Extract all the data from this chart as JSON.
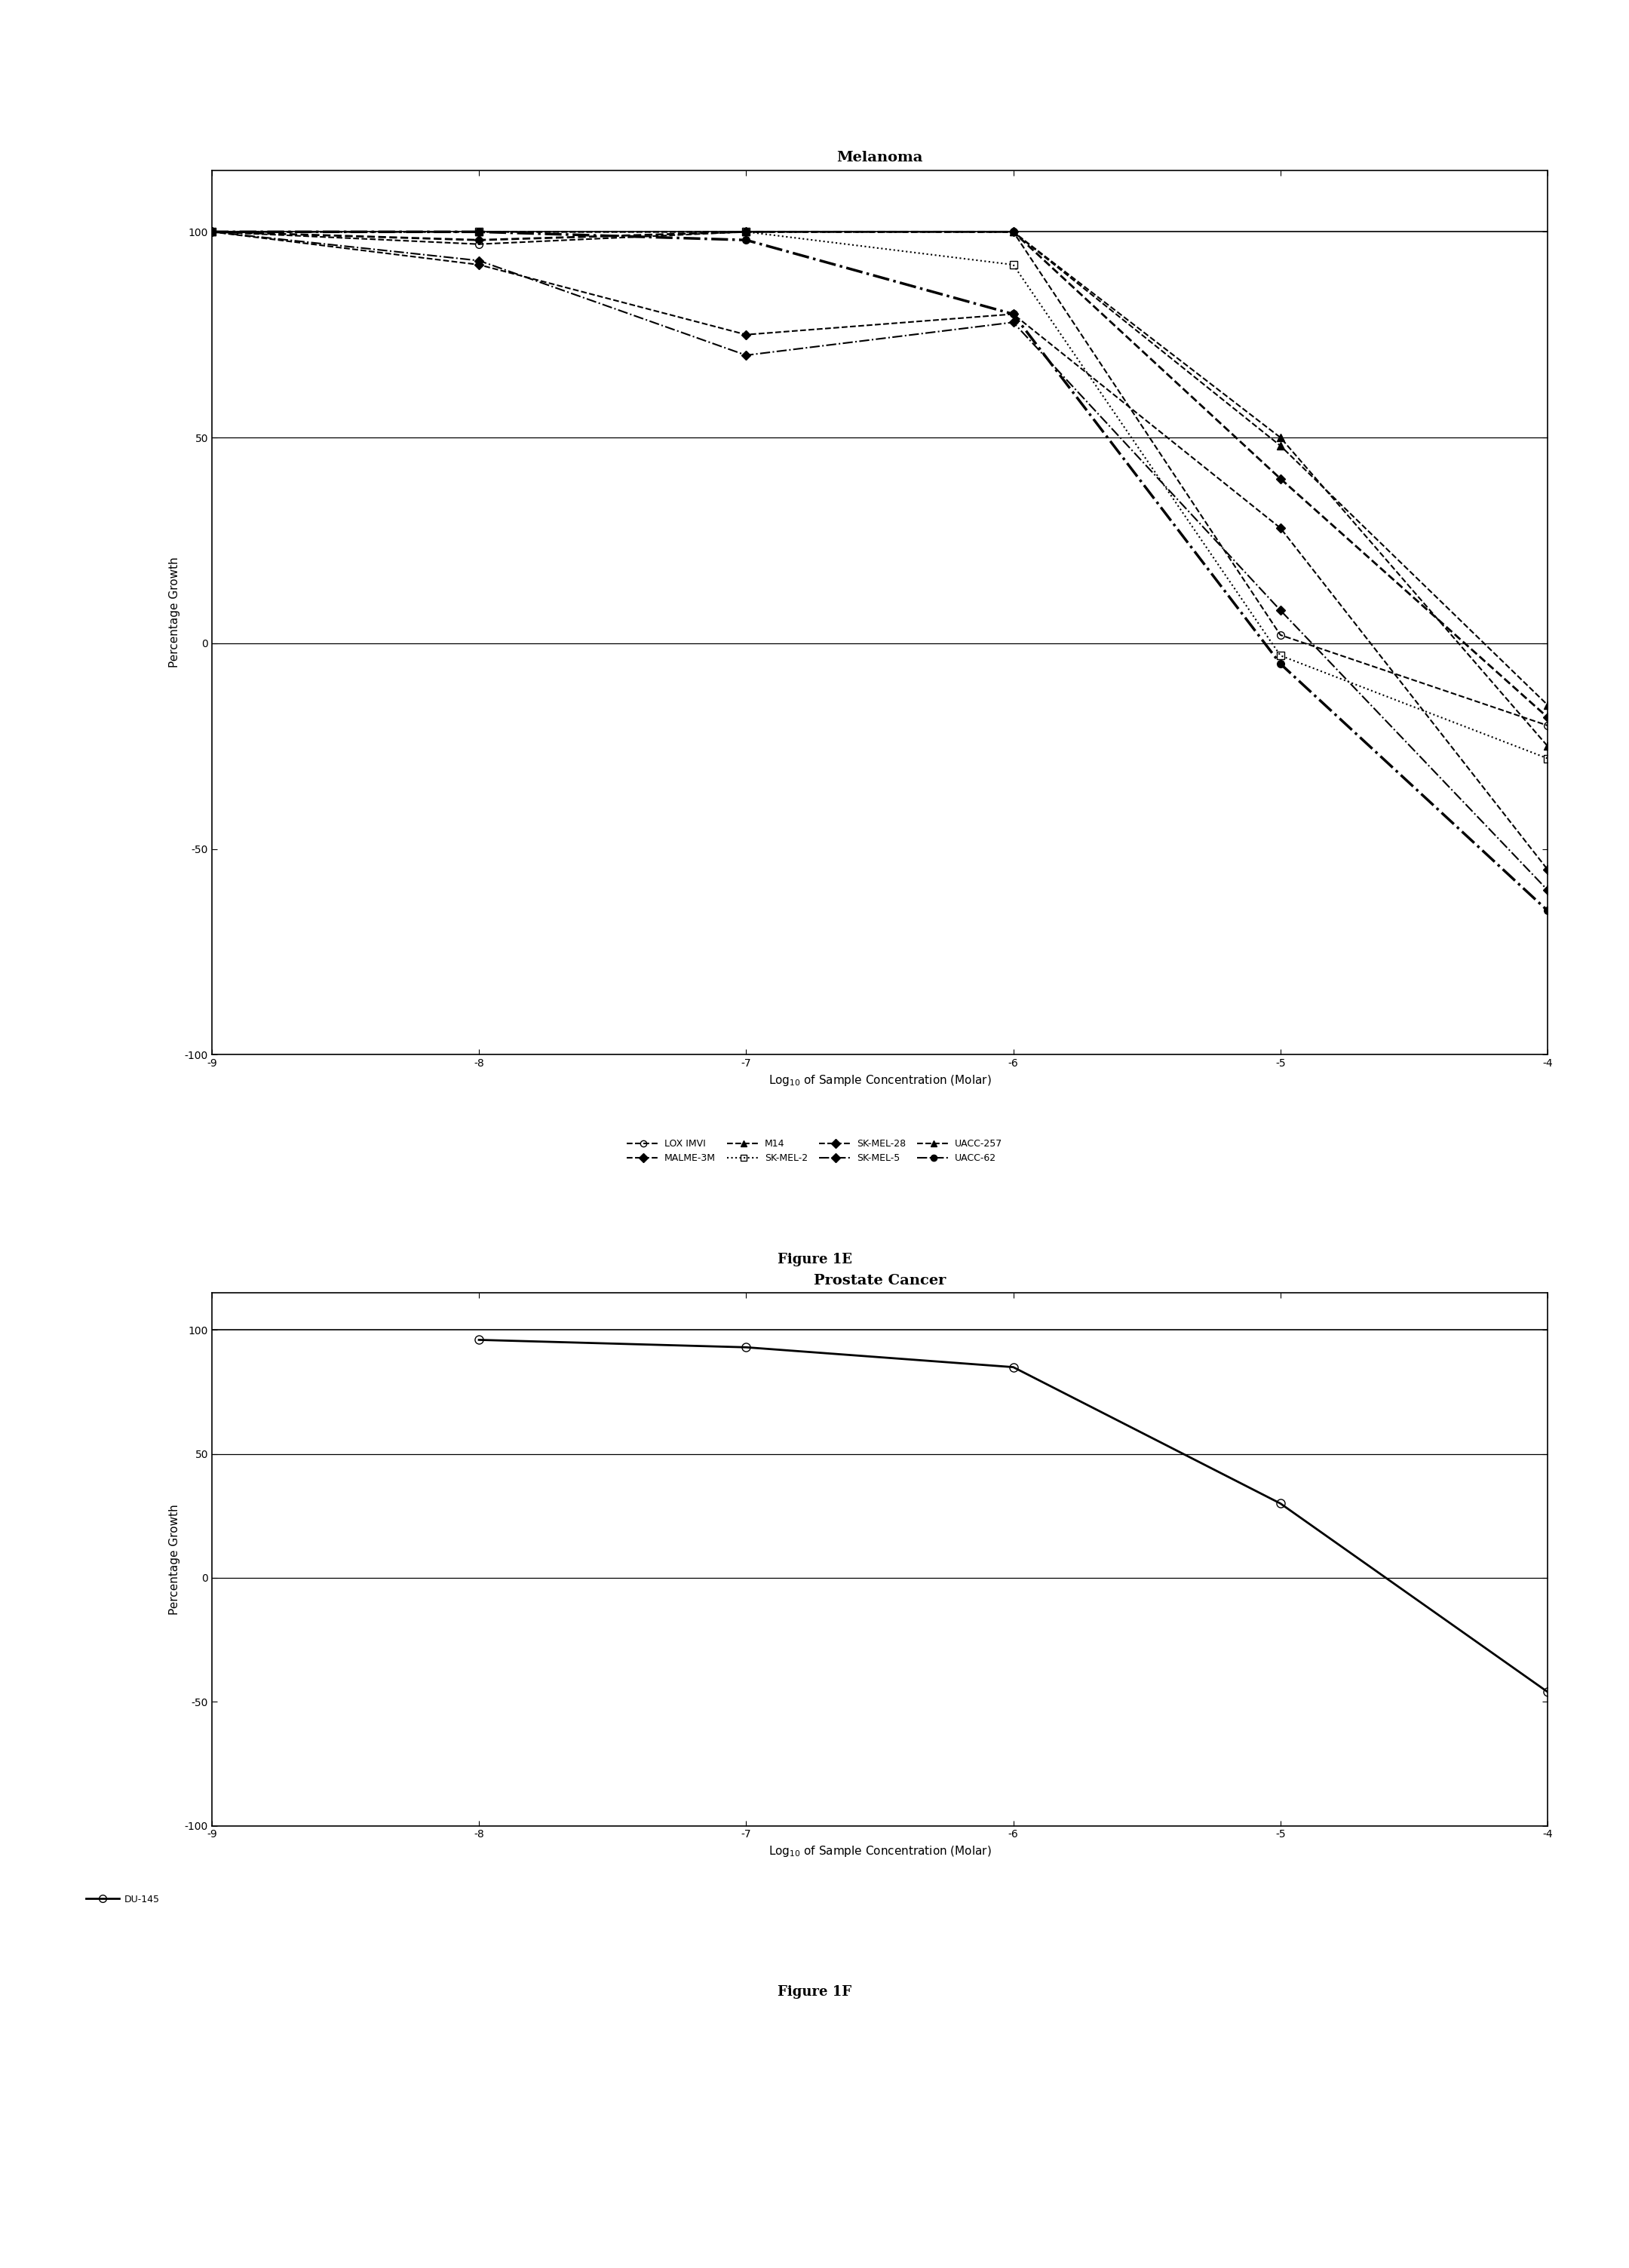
{
  "fig1e_title": "Melanoma",
  "fig1f_title": "Prostate Cancer",
  "xlabel": "Log$_{10}$ of Sample Concentration (Molar)",
  "ylabel": "Percentage Growth",
  "x_ticks": [
    -9,
    -8,
    -7,
    -6,
    -5,
    -4
  ],
  "ylim": [
    -100,
    115
  ],
  "yticks": [
    -100,
    -50,
    0,
    50,
    100
  ],
  "xlim": [
    -9,
    -4
  ],
  "fig1e_caption": "Figure 1E",
  "fig1f_caption": "Figure 1F",
  "melanoma_series": {
    "LOX_IMVI": {
      "x": [
        -9,
        -8,
        -7,
        -6,
        -5,
        -4
      ],
      "y": [
        100,
        97,
        100,
        100,
        2,
        -20
      ],
      "ls": "--",
      "marker": "o",
      "mfc": "none",
      "lw": 1.5,
      "ms": 7
    },
    "MALME_3M": {
      "x": [
        -9,
        -8,
        -7,
        -6,
        -5,
        -4
      ],
      "y": [
        100,
        92,
        75,
        80,
        28,
        -55
      ],
      "ls": "--",
      "marker": "D",
      "mfc": "black",
      "lw": 1.5,
      "ms": 6
    },
    "M14": {
      "x": [
        -9,
        -8,
        -7,
        -6,
        -5,
        -4
      ],
      "y": [
        100,
        100,
        100,
        100,
        50,
        -25
      ],
      "ls": "--",
      "marker": "^",
      "mfc": "black",
      "lw": 1.5,
      "ms": 7
    },
    "SK_MEL_2": {
      "x": [
        -9,
        -8,
        -7,
        -6,
        -5,
        -4
      ],
      "y": [
        100,
        100,
        100,
        92,
        -3,
        -28
      ],
      "ls": ":",
      "marker": "s",
      "mfc": "none",
      "lw": 1.5,
      "ms": 7
    },
    "SK_MEL_28": {
      "x": [
        -9,
        -8,
        -7,
        -6,
        -5,
        -4
      ],
      "y": [
        100,
        98,
        100,
        100,
        40,
        -18
      ],
      "ls": "--",
      "marker": "D",
      "mfc": "black",
      "lw": 2.0,
      "ms": 6
    },
    "SK_MEL_5": {
      "x": [
        -9,
        -8,
        -7,
        -6,
        -5,
        -4
      ],
      "y": [
        100,
        93,
        70,
        78,
        8,
        -60
      ],
      "ls": "-.",
      "marker": "D",
      "mfc": "black",
      "lw": 1.5,
      "ms": 6
    },
    "UACC_257": {
      "x": [
        -9,
        -8,
        -7,
        -6,
        -5,
        -4
      ],
      "y": [
        100,
        100,
        100,
        100,
        48,
        -15
      ],
      "ls": "--",
      "marker": "^",
      "mfc": "black",
      "lw": 1.5,
      "ms": 7
    },
    "UACC_62": {
      "x": [
        -9,
        -8,
        -7,
        -6,
        -5,
        -4
      ],
      "y": [
        100,
        100,
        98,
        80,
        -5,
        -65
      ],
      "ls": "-.",
      "marker": "o",
      "mfc": "black",
      "lw": 2.5,
      "ms": 7
    }
  },
  "prostate_series": {
    "DU_145": {
      "x": [
        -8,
        -7,
        -6,
        -5,
        -4
      ],
      "y": [
        96,
        93,
        85,
        30,
        -46
      ],
      "ls": "-",
      "marker": "o",
      "mfc": "none",
      "lw": 2.0,
      "ms": 8
    }
  },
  "background_color": "#ffffff",
  "title_fontsize": 14,
  "label_fontsize": 11,
  "tick_fontsize": 10,
  "caption_fontsize": 13,
  "legend_fontsize": 9
}
